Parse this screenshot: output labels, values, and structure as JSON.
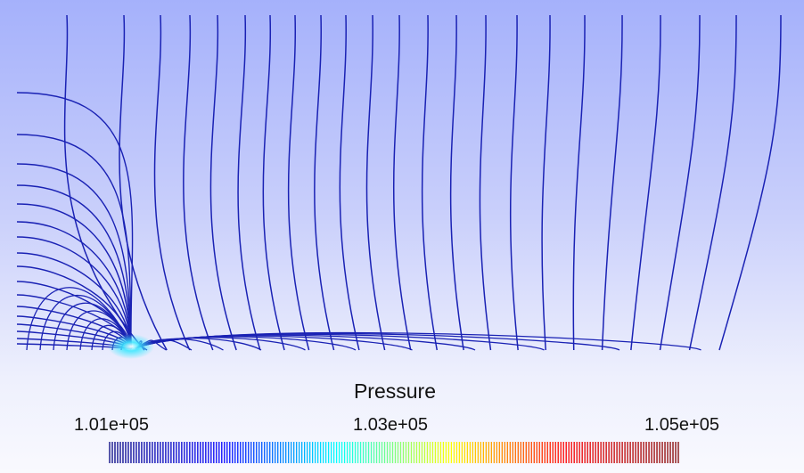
{
  "legend": {
    "title": "Pressure",
    "ticks": [
      "1.01e+05",
      "1.03e+05",
      "1.05e+05"
    ],
    "min": 101000,
    "max": 105000,
    "colormap": [
      "#00007f",
      "#0000ff",
      "#00ffff",
      "#ffff00",
      "#ff0000",
      "#7f0000"
    ]
  },
  "field": {
    "line_color": "#1a22b4",
    "background_top": "#a5b1fb",
    "background_bottom": "#f9f9fe"
  }
}
